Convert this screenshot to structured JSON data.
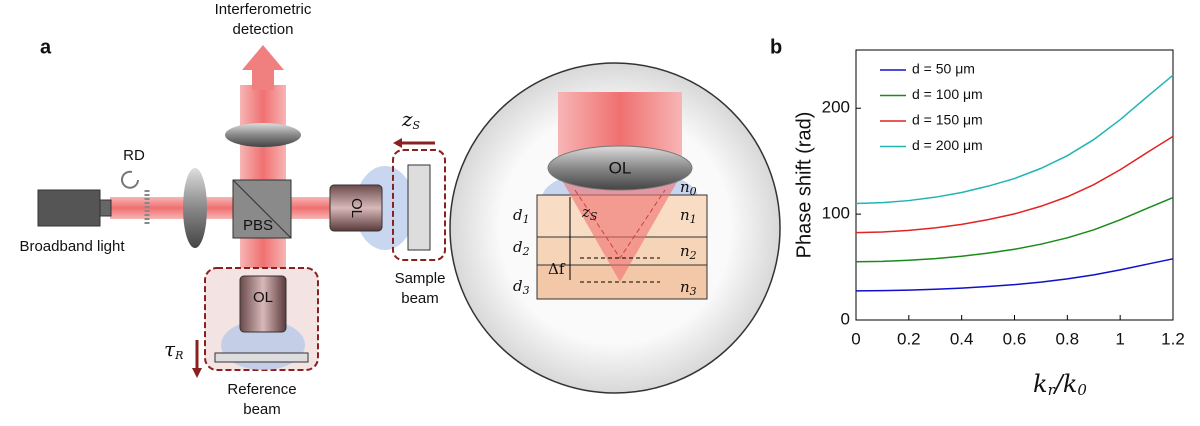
{
  "panel_a": {
    "label": "a",
    "detection": [
      "Interferometric",
      "detection"
    ],
    "rd": "RD",
    "source": "Broadband light",
    "pbs": "PBS",
    "ol_sample": "OL",
    "ol_reference": "OL",
    "sample_beam": [
      "Sample",
      "beam"
    ],
    "reference_beam": [
      "Reference",
      "beam"
    ],
    "z_s": {
      "main": "z",
      "sub": "S"
    },
    "tau_r": {
      "main": "τ",
      "sub": "R"
    },
    "inset": {
      "ol": "OL",
      "z_s": {
        "main": "z",
        "sub": "S"
      },
      "delta_f": "Δf",
      "d": [
        {
          "main": "d",
          "sub": "1"
        },
        {
          "main": "d",
          "sub": "2"
        },
        {
          "main": "d",
          "sub": "3"
        }
      ],
      "n": [
        {
          "main": "n",
          "sub": "0"
        },
        {
          "main": "n",
          "sub": "1"
        },
        {
          "main": "n",
          "sub": "2"
        },
        {
          "main": "n",
          "sub": "3"
        }
      ]
    }
  },
  "panel_b": {
    "label": "b"
  },
  "chart_data": {
    "type": "line",
    "ylabel": "Phase shift (rad)",
    "xlabel": [
      {
        "main": "k",
        "sub": "r"
      },
      {
        "main": "/k",
        "sub": "0"
      }
    ],
    "x": [
      0,
      0.1,
      0.2,
      0.3,
      0.4,
      0.5,
      0.6,
      0.7,
      0.8,
      0.9,
      1,
      1.1,
      1.2
    ],
    "series": [
      {
        "name": "d = 50 μm",
        "color": "#1010c8",
        "values": [
          27.5,
          27.7,
          28.2,
          29.0,
          30.1,
          31.6,
          33.4,
          35.8,
          38.8,
          42.6,
          47.3,
          52.6,
          57.8
        ]
      },
      {
        "name": "d = 100 μm",
        "color": "#1a8a1a",
        "values": [
          55,
          55.4,
          56.4,
          58,
          60.2,
          63.2,
          66.8,
          71.6,
          77.6,
          85.2,
          94.6,
          105.2,
          115.6
        ]
      },
      {
        "name": "d = 150 μm",
        "color": "#e02424",
        "values": [
          82.5,
          83.1,
          84.6,
          87,
          90.3,
          94.8,
          100.2,
          107.4,
          116.4,
          127.8,
          141.9,
          157.8,
          173.4
        ]
      },
      {
        "name": "d = 200 μm",
        "color": "#22b4b4",
        "values": [
          110,
          110.8,
          112.8,
          116,
          120.4,
          126.4,
          133.6,
          143.2,
          155.2,
          170.4,
          189.2,
          210.4,
          231.2
        ]
      }
    ],
    "xlim": [
      0,
      1.2
    ],
    "xticks": [
      0,
      0.2,
      0.4,
      0.6,
      0.8,
      1,
      1.2
    ],
    "ylim": [
      0,
      255
    ],
    "yticks": [
      0,
      100,
      200
    ],
    "legend": "upper left"
  }
}
